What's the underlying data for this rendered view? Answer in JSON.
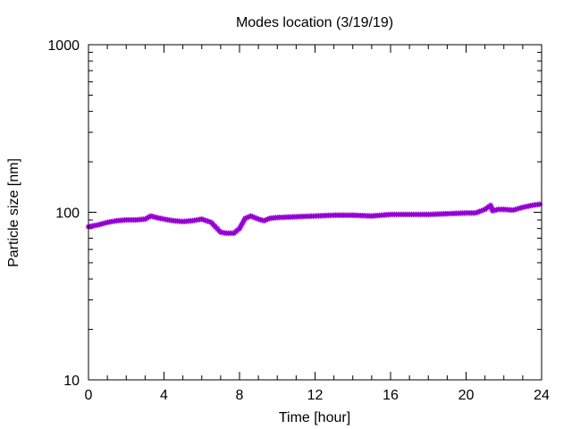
{
  "chart_data": {
    "type": "line",
    "title": "Modes location (3/19/19)",
    "xlabel": "Time [hour]",
    "ylabel": "Particle size [nm]",
    "xlim": [
      0,
      24
    ],
    "ylim": [
      10,
      1000
    ],
    "yscale": "log",
    "grid": false,
    "x_ticks": [
      "0",
      "4",
      "8",
      "12",
      "16",
      "20",
      "24"
    ],
    "y_ticks": [
      "10",
      "100",
      "1000"
    ],
    "series": [
      {
        "color": "#9400d3",
        "marker": "star",
        "x": [
          0,
          0.5,
          1,
          1.5,
          2,
          2.5,
          3,
          3.3,
          3.6,
          4,
          4.5,
          5,
          5.5,
          6,
          6.5,
          7,
          7.3,
          7.7,
          8,
          8.3,
          8.6,
          9,
          9.3,
          9.6,
          10,
          11,
          12,
          13,
          14,
          15,
          16,
          17,
          18,
          19,
          20,
          20.5,
          21,
          21.3,
          21.4,
          21.7,
          22,
          22.5,
          23,
          23.5,
          24
        ],
        "y": [
          82,
          84,
          87,
          89,
          90,
          90,
          91,
          95,
          93,
          91,
          89,
          88,
          89,
          91,
          87,
          76,
          75,
          75,
          80,
          92,
          95,
          91,
          89,
          92,
          93,
          94,
          95,
          96,
          96,
          95,
          97,
          97,
          97,
          98,
          99,
          99,
          104,
          110,
          102,
          104,
          104,
          103,
          107,
          110,
          112
        ]
      }
    ]
  }
}
